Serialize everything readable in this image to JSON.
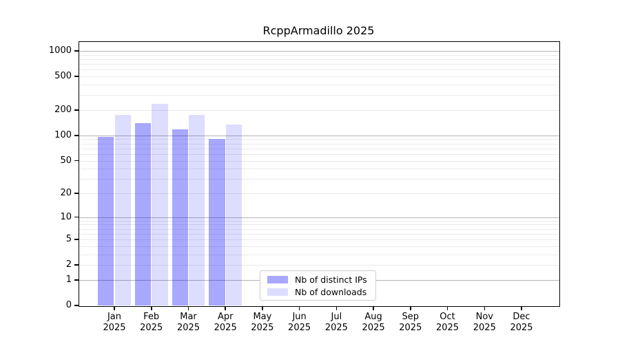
{
  "chart_data": {
    "type": "bar",
    "title": "RcppArmadillo 2025",
    "xlabel": "",
    "ylabel": "",
    "scale": "log1p",
    "ylim": [
      0,
      1300
    ],
    "yticks": [
      0,
      1,
      2,
      5,
      10,
      20,
      50,
      100,
      200,
      500,
      1000
    ],
    "grid": true,
    "major_grid_color": "#b3b3b3",
    "minor_grid_color": "#eaeaea",
    "months": [
      "Jan",
      "Feb",
      "Mar",
      "Apr",
      "May",
      "Jun",
      "Jul",
      "Aug",
      "Sep",
      "Oct",
      "Nov",
      "Dec"
    ],
    "year_label": "2025",
    "series": [
      {
        "name": "Nb of distinct IPs",
        "color_hex": "#aaaaff",
        "color_rgba": "rgba(0,0,255,0.34)",
        "values": [
          97,
          141,
          118,
          90,
          null,
          null,
          null,
          null,
          null,
          null,
          null,
          null
        ]
      },
      {
        "name": "Nb of downloads",
        "color_hex": "#ddddff",
        "color_rgba": "rgba(0,0,255,0.135)",
        "values": [
          177,
          236,
          177,
          134,
          null,
          null,
          null,
          null,
          null,
          null,
          null,
          null
        ]
      }
    ],
    "legend_position": "bottom-center"
  }
}
